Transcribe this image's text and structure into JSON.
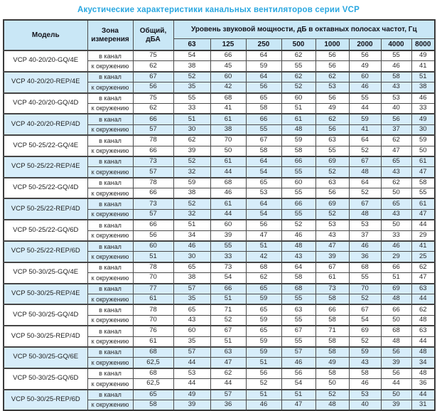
{
  "title": "Акустические характеристики канальных вентиляторов  серии VCP",
  "colors": {
    "title_text": "#29a7e0",
    "header_bg": "#c9e7f6",
    "shaded_row_bg": "#d7edfa",
    "border_dark": "#3a3a3a",
    "border_light": "#9aa2a8"
  },
  "table": {
    "headers": {
      "model": "Модель",
      "zone": "Зона измерения",
      "total": "Общий, дБА",
      "spl": "Уровень звуковой мощности, дБ в октавных полосах частот, Гц",
      "frequencies": [
        "63",
        "125",
        "250",
        "500",
        "1000",
        "2000",
        "4000",
        "8000"
      ]
    },
    "zone_labels": [
      "в канал",
      "к окружению"
    ],
    "models": [
      {
        "name": "VCP 40-20/20-GQ/4E",
        "shaded": false,
        "rows": [
          {
            "zone": "в канал",
            "total": "75",
            "levels": [
              54,
              66,
              64,
              62,
              56,
              56,
              55,
              49
            ]
          },
          {
            "zone": "к окружению",
            "total": "62",
            "levels": [
              38,
              45,
              59,
              55,
              56,
              49,
              46,
              41
            ]
          }
        ]
      },
      {
        "name": "VCP 40-20/20-REP/4E",
        "shaded": true,
        "rows": [
          {
            "zone": "в канал",
            "total": "67",
            "levels": [
              52,
              60,
              64,
              62,
              62,
              60,
              58,
              51
            ]
          },
          {
            "zone": "к окружению",
            "total": "56",
            "levels": [
              35,
              42,
              56,
              52,
              53,
              46,
              43,
              38
            ]
          }
        ]
      },
      {
        "name": "VCP 40-20/20-GQ/4D",
        "shaded": false,
        "rows": [
          {
            "zone": "в канал",
            "total": "75",
            "levels": [
              55,
              68,
              65,
              60,
              56,
              55,
              53,
              46
            ]
          },
          {
            "zone": "к окружению",
            "total": "62",
            "levels": [
              33,
              41,
              58,
              51,
              49,
              44,
              40,
              33
            ]
          }
        ]
      },
      {
        "name": "VCP 40-20/20-REP/4D",
        "shaded": true,
        "rows": [
          {
            "zone": "в канал",
            "total": "66",
            "levels": [
              51,
              61,
              66,
              61,
              62,
              59,
              56,
              49
            ]
          },
          {
            "zone": "к окружению",
            "total": "57",
            "levels": [
              30,
              38,
              55,
              48,
              56,
              41,
              37,
              30
            ]
          }
        ]
      },
      {
        "name": "VCP 50-25/22-GQ/4E",
        "shaded": false,
        "rows": [
          {
            "zone": "в канал",
            "total": "78",
            "levels": [
              62,
              70,
              67,
              59,
              63,
              64,
              62,
              59
            ]
          },
          {
            "zone": "к окружению",
            "total": "66",
            "levels": [
              39,
              50,
              58,
              58,
              55,
              52,
              47,
              50
            ]
          }
        ]
      },
      {
        "name": "VCP 50-25/22-REP/4E",
        "shaded": true,
        "rows": [
          {
            "zone": "в канал",
            "total": "73",
            "levels": [
              52,
              61,
              64,
              66,
              69,
              67,
              65,
              61
            ]
          },
          {
            "zone": "к окружению",
            "total": "57",
            "levels": [
              32,
              44,
              54,
              55,
              52,
              48,
              43,
              47
            ]
          }
        ]
      },
      {
        "name": "VCP 50-25/22-GQ/4D",
        "shaded": false,
        "rows": [
          {
            "zone": "в канал",
            "total": "78",
            "levels": [
              59,
              68,
              65,
              60,
              63,
              64,
              62,
              58
            ]
          },
          {
            "zone": "к окружению",
            "total": "66",
            "levels": [
              38,
              46,
              53,
              55,
              56,
              52,
              50,
              55
            ]
          }
        ]
      },
      {
        "name": "VCP 50-25/22-REP/4D",
        "shaded": true,
        "rows": [
          {
            "zone": "в канал",
            "total": "73",
            "levels": [
              52,
              61,
              64,
              66,
              69,
              67,
              65,
              61
            ]
          },
          {
            "zone": "к окружению",
            "total": "57",
            "levels": [
              32,
              44,
              54,
              55,
              52,
              48,
              43,
              47
            ]
          }
        ]
      },
      {
        "name": "VCP 50-25/22-GQ/6D",
        "shaded": false,
        "rows": [
          {
            "zone": "в канал",
            "total": "66",
            "levels": [
              51,
              60,
              56,
              52,
              53,
              53,
              50,
              44
            ]
          },
          {
            "zone": "к окружению",
            "total": "56",
            "levels": [
              34,
              39,
              47,
              46,
              43,
              37,
              33,
              29
            ]
          }
        ]
      },
      {
        "name": "VCP 50-25/22-REP/6D",
        "shaded": true,
        "rows": [
          {
            "zone": "в канал",
            "total": "60",
            "levels": [
              46,
              55,
              51,
              48,
              47,
              46,
              46,
              41
            ]
          },
          {
            "zone": "к окружению",
            "total": "51",
            "levels": [
              30,
              33,
              42,
              43,
              39,
              36,
              29,
              25
            ]
          }
        ]
      },
      {
        "name": "VCP 50-30/25-GQ/4E",
        "shaded": false,
        "rows": [
          {
            "zone": "в канал",
            "total": "78",
            "levels": [
              65,
              73,
              68,
              64,
              67,
              68,
              66,
              62
            ]
          },
          {
            "zone": "к окружению",
            "total": "70",
            "levels": [
              38,
              54,
              62,
              58,
              61,
              55,
              51,
              47
            ]
          }
        ]
      },
      {
        "name": "VCP 50-30/25-REP/4E",
        "shaded": true,
        "rows": [
          {
            "zone": "в канал",
            "total": "77",
            "levels": [
              57,
              66,
              65,
              68,
              73,
              70,
              69,
              63
            ]
          },
          {
            "zone": "к окружению",
            "total": "61",
            "levels": [
              35,
              51,
              59,
              55,
              58,
              52,
              48,
              44
            ]
          }
        ]
      },
      {
        "name": "VCP 50-30/25-GQ/4D",
        "shaded": false,
        "rows": [
          {
            "zone": "в канал",
            "total": "78",
            "levels": [
              65,
              71,
              65,
              63,
              66,
              67,
              66,
              62
            ]
          },
          {
            "zone": "к окружению",
            "total": "70",
            "levels": [
              43,
              52,
              59,
              55,
              58,
              54,
              50,
              48
            ]
          }
        ]
      },
      {
        "name": "VCP 50-30/25-REP/4D",
        "shaded": false,
        "rows": [
          {
            "zone": "в канал",
            "total": "76",
            "levels": [
              60,
              67,
              65,
              67,
              71,
              69,
              68,
              63
            ]
          },
          {
            "zone": "к окружению",
            "total": "61",
            "levels": [
              35,
              51,
              59,
              55,
              58,
              52,
              48,
              44
            ]
          }
        ]
      },
      {
        "name": "VCP 50-30/25-GQ/6E",
        "shaded": true,
        "rows": [
          {
            "zone": "в канал",
            "total": "68",
            "levels": [
              57,
              63,
              59,
              57,
              58,
              59,
              56,
              48
            ]
          },
          {
            "zone": "к окружению",
            "total": "62,5",
            "levels": [
              44,
              47,
              51,
              46,
              49,
              43,
              39,
              34
            ]
          }
        ]
      },
      {
        "name": "VCP 50-30/25-GQ/6D",
        "shaded": false,
        "rows": [
          {
            "zone": "в канал",
            "total": "68",
            "levels": [
              53,
              62,
              56,
              56,
              58,
              58,
              56,
              48
            ]
          },
          {
            "zone": "к окружению",
            "total": "62,5",
            "levels": [
              44,
              44,
              52,
              54,
              50,
              46,
              44,
              36
            ]
          }
        ]
      },
      {
        "name": "VCP 50-30/25-REP/6D",
        "shaded": true,
        "rows": [
          {
            "zone": "в канал",
            "total": "65",
            "levels": [
              49,
              57,
              51,
              51,
              52,
              53,
              50,
              44
            ]
          },
          {
            "zone": "к окружению",
            "total": "58",
            "levels": [
              39,
              36,
              46,
              47,
              48,
              40,
              39,
              31
            ]
          }
        ]
      }
    ]
  }
}
